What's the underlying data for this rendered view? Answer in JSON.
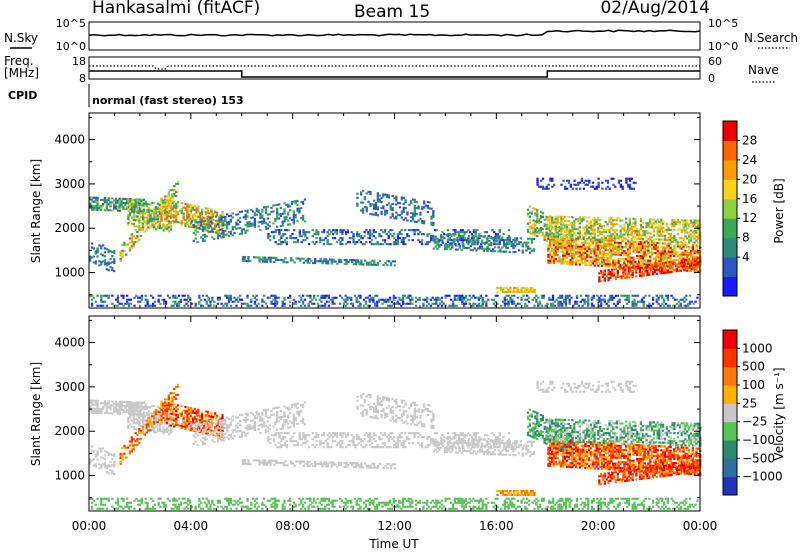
{
  "header": {
    "station": "Hankasalmi (fitACF)",
    "beam": "Beam 15",
    "date": "02/Aug/2014"
  },
  "strips": {
    "sky_label": "N.Sky",
    "search_label": "N.Search",
    "sky_ticks": [
      "10^5",
      "10^0"
    ],
    "search_ticks": [
      "10^5",
      "10^0"
    ],
    "freq_label_1": "Freq.",
    "freq_label_2": "[MHz]",
    "freq_ticks": [
      "18",
      "8"
    ],
    "nave_label": "Nave",
    "nave_ticks": [
      "60",
      "0"
    ],
    "cpid_label": "CPID",
    "cpid_value": "normal (fast stereo) 153"
  },
  "chart_data": [
    {
      "type": "heatmap",
      "panel": "power",
      "xlabel": "",
      "ylabel": "Slant Range [km]",
      "ylim": [
        200,
        4600
      ],
      "yticks": [
        1000,
        2000,
        3000,
        4000
      ],
      "xlim": [
        0,
        24
      ],
      "colorbar": {
        "label": "Power [dB]",
        "ticks": [
          "28",
          "24",
          "20",
          "16",
          "12",
          "8",
          "4"
        ],
        "colors": [
          "#1a1aff",
          "#2e55c4",
          "#2e8a7a",
          "#3fa857",
          "#8fd23f",
          "#ffd21a",
          "#ff9a00",
          "#ff6600",
          "#ee0000"
        ]
      }
    },
    {
      "type": "heatmap",
      "panel": "velocity",
      "xlabel": "Time UT",
      "ylabel": "Slant Range [km]",
      "ylim": [
        200,
        4600
      ],
      "yticks": [
        1000,
        2000,
        3000,
        4000
      ],
      "xlim": [
        0,
        24
      ],
      "xticks": [
        "00:00",
        "04:00",
        "08:00",
        "12:00",
        "16:00",
        "20:00",
        "00:00"
      ],
      "colorbar": {
        "label": "Velocity [m s⁻¹]",
        "ticks": [
          "1000",
          "500",
          "100",
          "25",
          "−25",
          "−100",
          "−500",
          "−1000"
        ],
        "colors": [
          "#2233bb",
          "#2e6fa0",
          "#2e8a6e",
          "#55c455",
          "#c8c8c8",
          "#ffb000",
          "#ff7700",
          "#ff3300",
          "#ee0000"
        ]
      }
    }
  ]
}
